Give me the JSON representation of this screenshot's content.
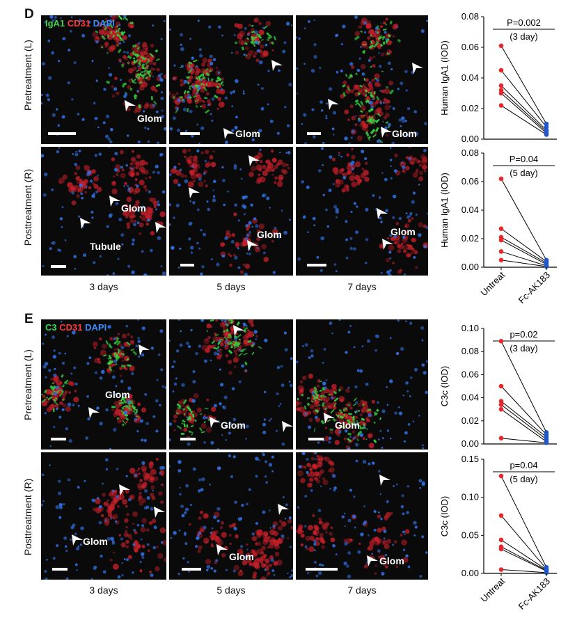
{
  "panels": [
    {
      "letter": "D",
      "stain": {
        "g": "IgA1",
        "r": "CD31",
        "b": "DAPI"
      },
      "rows": [
        "Pretreatment (L)",
        "Posttreatment (R)"
      ],
      "days": [
        "3 days",
        "5 days",
        "7 days"
      ],
      "labels": {
        "glom": "Glom",
        "tubule": "Tubule"
      }
    },
    {
      "letter": "E",
      "stain": {
        "g": "C3",
        "r": "CD31",
        "b": "DAPI"
      },
      "rows": [
        "Pretreatment (L)",
        "Posttreatment (R)"
      ],
      "days": [
        "3 days",
        "5 days",
        "7 days"
      ],
      "labels": {
        "glom": "Glom"
      }
    }
  ],
  "colors": {
    "untreat": "#e8262b",
    "treated": "#2257c8",
    "green": "#3fd64a",
    "red": "#ff3b3b",
    "blue": "#3a8dff"
  },
  "chart_data": [
    {
      "type": "scatter",
      "ylabel": "Human IgA1 (IOD)",
      "ylim": [
        0,
        0.08
      ],
      "yticks": [
        "0.00",
        "0.02",
        "0.04",
        "0.06",
        "0.08"
      ],
      "annotation": "P=0.002",
      "sub": "(3 day)",
      "categories": [
        "Untreat",
        "Fc-AK183"
      ],
      "pairs": [
        [
          0.061,
          0.01
        ],
        [
          0.045,
          0.008
        ],
        [
          0.035,
          0.006
        ],
        [
          0.032,
          0.005
        ],
        [
          0.03,
          0.004
        ],
        [
          0.022,
          0.003
        ]
      ]
    },
    {
      "type": "scatter",
      "ylabel": "Human IgA1 (IOD)",
      "ylim": [
        0,
        0.08
      ],
      "yticks": [
        "0.00",
        "0.02",
        "0.04",
        "0.06",
        "0.08"
      ],
      "annotation": "P=0.04",
      "sub": "(5 day)",
      "categories": [
        "Untreat",
        "Fc-AK183"
      ],
      "pairs": [
        [
          0.062,
          0.005
        ],
        [
          0.027,
          0.004
        ],
        [
          0.021,
          0.003
        ],
        [
          0.019,
          0.002
        ],
        [
          0.011,
          0.001
        ],
        [
          0.005,
          0.0005
        ]
      ]
    },
    {
      "type": "scatter",
      "ylabel": "C3c (IOD)",
      "ylim": [
        0,
        0.1
      ],
      "yticks": [
        "0.00",
        "0.02",
        "0.04",
        "0.06",
        "0.08",
        "0.10"
      ],
      "annotation": "p=0.02",
      "sub": "(3 day)",
      "categories": [
        "Untreat",
        "Fc-AK183"
      ],
      "pairs": [
        [
          0.089,
          0.01
        ],
        [
          0.05,
          0.008
        ],
        [
          0.037,
          0.006
        ],
        [
          0.034,
          0.004
        ],
        [
          0.03,
          0.002
        ],
        [
          0.005,
          0.001
        ]
      ]
    },
    {
      "type": "scatter",
      "ylabel": "C3c (IOD)",
      "ylim": [
        0,
        0.15
      ],
      "yticks": [
        "0.00",
        "0.05",
        "0.10",
        "0.15"
      ],
      "annotation": "p=0.04",
      "sub": "(5 day)",
      "categories": [
        "Untreat",
        "Fc-AK183"
      ],
      "pairs": [
        [
          0.128,
          0.008
        ],
        [
          0.076,
          0.006
        ],
        [
          0.044,
          0.005
        ],
        [
          0.035,
          0.004
        ],
        [
          0.032,
          0.003
        ],
        [
          0.005,
          0.001
        ]
      ]
    }
  ]
}
